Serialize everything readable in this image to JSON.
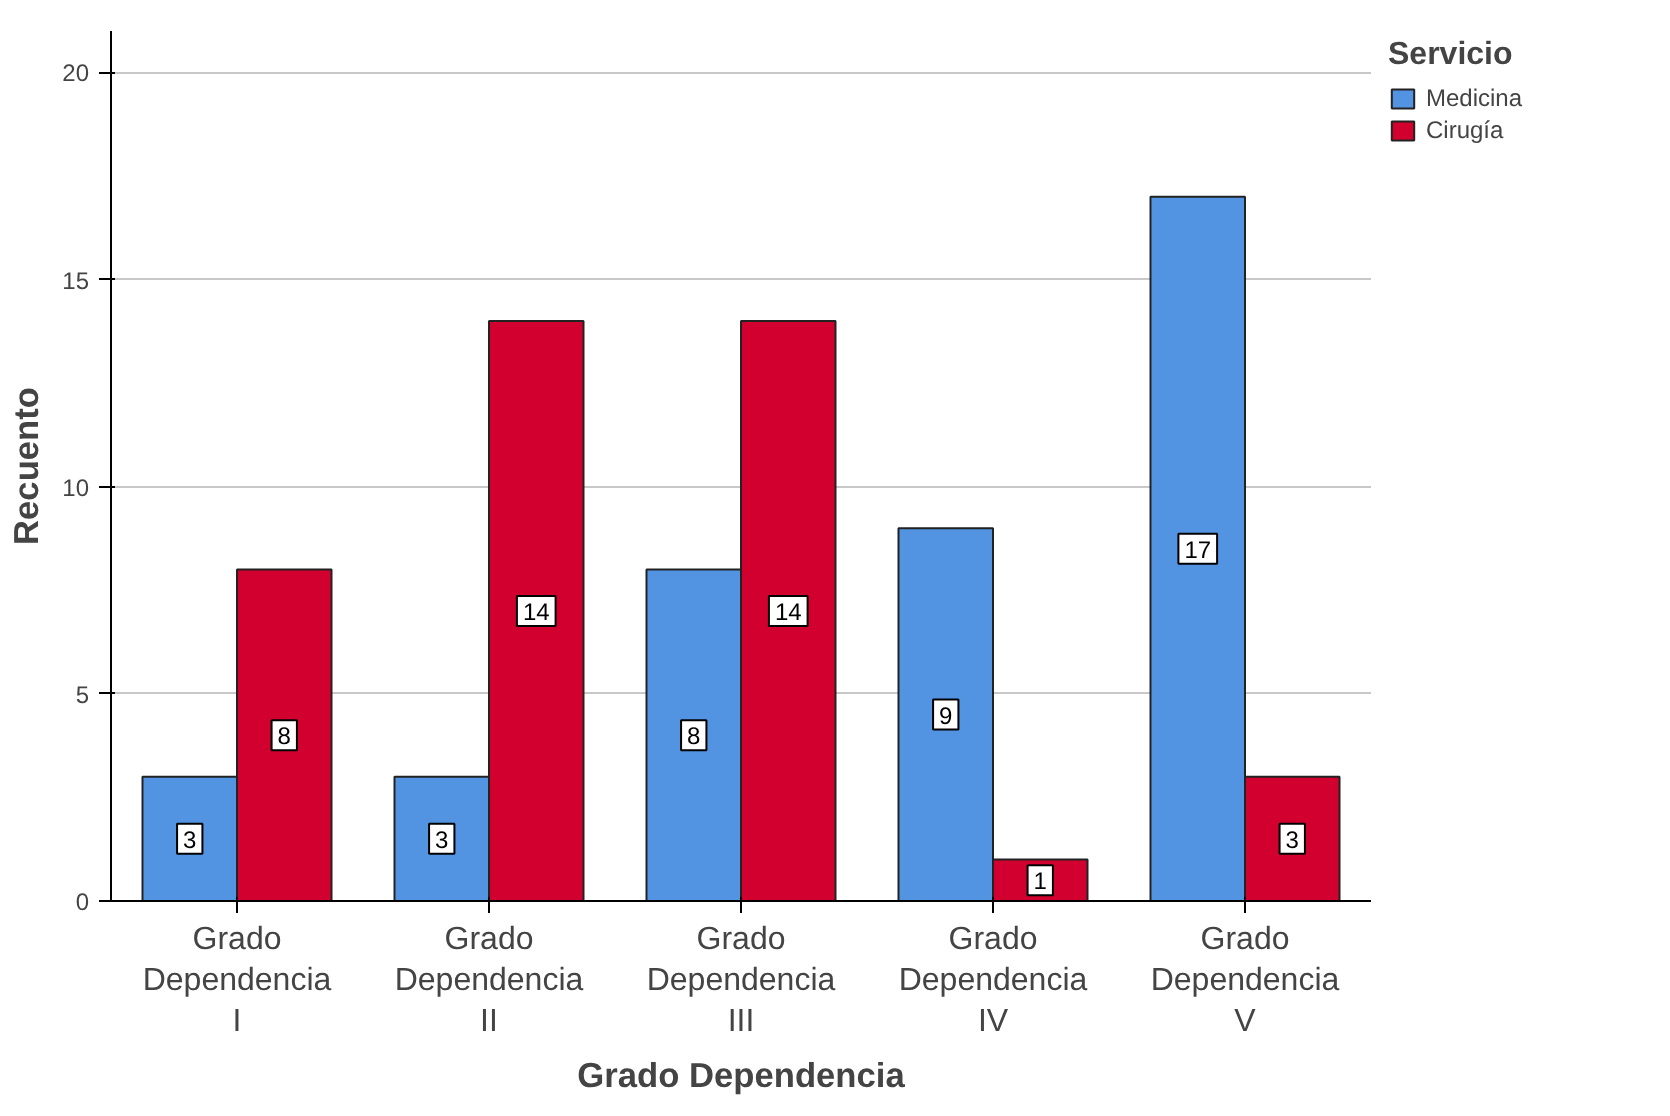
{
  "chart_data": {
    "type": "bar",
    "xlabel": "Grado Dependencia",
    "ylabel": "Recuento",
    "legend_title": "Servicio",
    "categories": [
      "Grado Dependencia I",
      "Grado Dependencia II",
      "Grado Dependencia III",
      "Grado Dependencia IV",
      "Grado Dependencia V"
    ],
    "series": [
      {
        "name": "Medicina",
        "color": "#5294e2",
        "values": [
          3,
          3,
          8,
          9,
          17
        ]
      },
      {
        "name": "Cirugía",
        "color": "#d2002e",
        "values": [
          8,
          14,
          14,
          1,
          3
        ]
      }
    ],
    "ylim": [
      0,
      21
    ],
    "yticks": [
      0,
      5,
      10,
      15,
      20
    ],
    "grid": "y",
    "legend": "top right",
    "data_labels": true
  }
}
